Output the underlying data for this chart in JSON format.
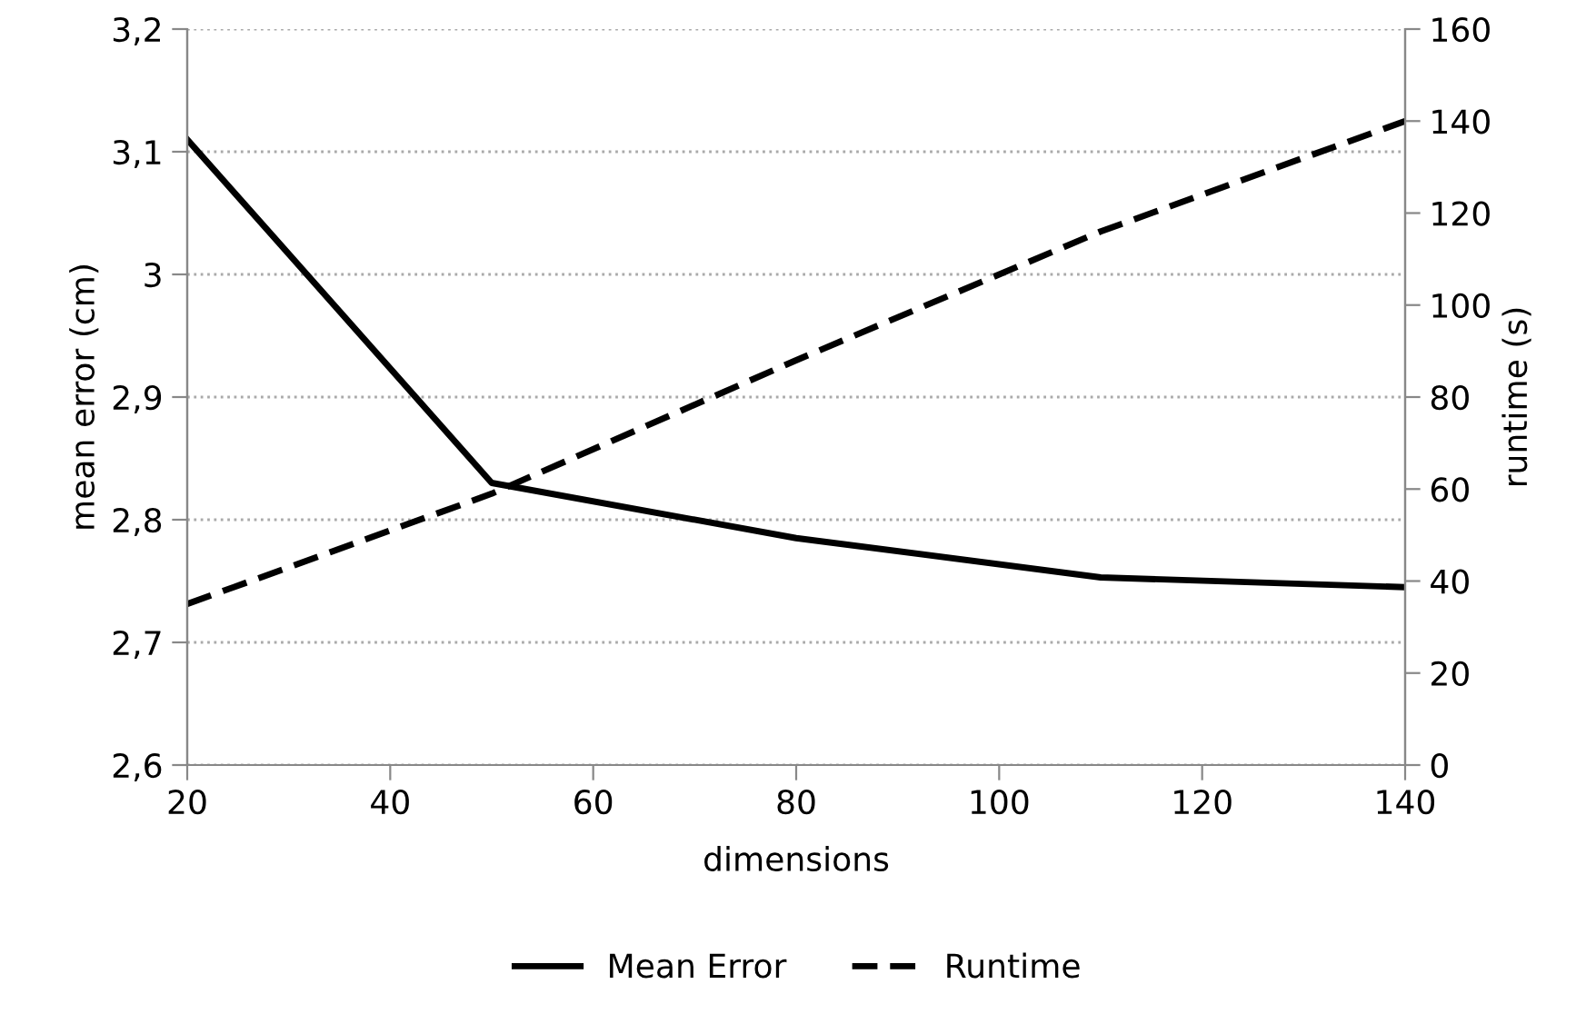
{
  "chart_data": {
    "type": "line",
    "xlabel": "dimensions",
    "ylabel": "mean error (cm)",
    "y2label": "runtime (s)",
    "x": [
      20,
      50,
      80,
      110,
      140
    ],
    "series": [
      {
        "name": "Mean Error",
        "color": "#000000",
        "line_style": "solid",
        "values": [
          3.11,
          2.83,
          2.785,
          2.753,
          2.745
        ]
      },
      {
        "name": "Runtime",
        "color": "#000000",
        "line_style": "dashed",
        "axis": "y2",
        "values": [
          35,
          59,
          88,
          116,
          140
        ]
      }
    ],
    "xlim": [
      20,
      140
    ],
    "xticks": [
      20,
      40,
      60,
      80,
      100,
      120,
      140
    ],
    "ylim": [
      2.6,
      3.2
    ],
    "yticks": [
      {
        "value": 2.6,
        "label": "2,6"
      },
      {
        "value": 2.7,
        "label": "2,7"
      },
      {
        "value": 2.8,
        "label": "2,8"
      },
      {
        "value": 2.9,
        "label": "2,9"
      },
      {
        "value": 3,
        "label": "3"
      },
      {
        "value": 3.1,
        "label": "3,1"
      },
      {
        "value": 3.2,
        "label": "3,2"
      }
    ],
    "y2lim": [
      0,
      160
    ],
    "y2ticks": [
      0,
      20,
      40,
      60,
      80,
      100,
      120,
      140,
      160
    ],
    "grid": "y",
    "legend": "bottom",
    "marker": "none"
  }
}
